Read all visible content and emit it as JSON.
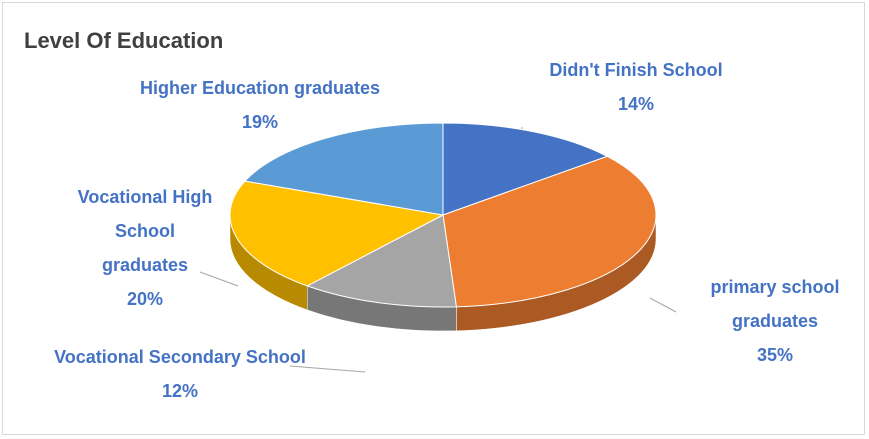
{
  "chart_data": {
    "type": "pie",
    "title": "Level Of Education",
    "categories": [
      "Didn't Finish School",
      "primary school graduates",
      "Vocational Secondary School",
      "Vocational High School graduates",
      "Higher Education graduates"
    ],
    "values": [
      14,
      35,
      12,
      20,
      19
    ],
    "value_labels": [
      "14%",
      "35%",
      "12%",
      "20%",
      "19%"
    ],
    "colors": [
      "#4472c4",
      "#ed7d31",
      "#a5a5a5",
      "#ffc000",
      "#5b9bd5"
    ]
  }
}
